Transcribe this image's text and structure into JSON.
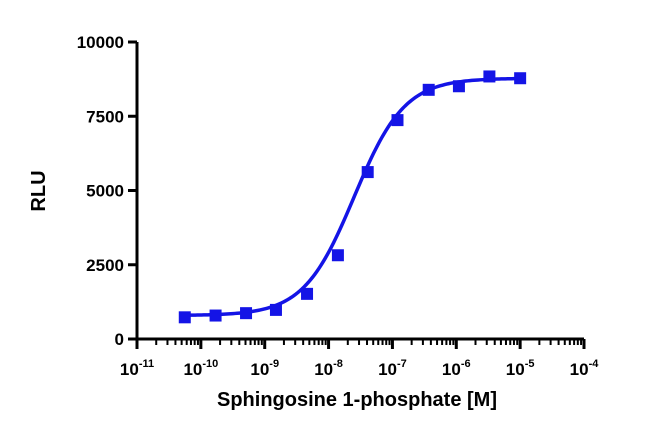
{
  "chart_data": {
    "type": "scatter",
    "title": "",
    "xlabel": "Sphingosine 1-phosphate [M]",
    "ylabel": "RLU",
    "xscale": "log",
    "xlim": [
      1e-11,
      0.0001
    ],
    "ylim": [
      0,
      10000
    ],
    "x_ticks": [
      {
        "base": "10",
        "exp": "-11",
        "value": 1e-11
      },
      {
        "base": "10",
        "exp": "-10",
        "value": 1e-10
      },
      {
        "base": "10",
        "exp": "-9",
        "value": 1e-09
      },
      {
        "base": "10",
        "exp": "-8",
        "value": 1e-08
      },
      {
        "base": "10",
        "exp": "-7",
        "value": 1e-07
      },
      {
        "base": "10",
        "exp": "-6",
        "value": 1e-06
      },
      {
        "base": "10",
        "exp": "-5",
        "value": 1e-05
      },
      {
        "base": "10",
        "exp": "-4",
        "value": 0.0001
      }
    ],
    "y_ticks": [
      {
        "label": "0",
        "value": 0
      },
      {
        "label": "2500",
        "value": 2500
      },
      {
        "label": "5000",
        "value": 5000
      },
      {
        "label": "7500",
        "value": 7500
      },
      {
        "label": "10000",
        "value": 10000
      }
    ],
    "grid": false,
    "series": [
      {
        "color": "#1414e6",
        "marker": "square",
        "x": [
          5.6e-11,
          1.7e-10,
          5.1e-10,
          1.5e-09,
          4.6e-09,
          1.4e-08,
          4.1e-08,
          1.2e-07,
          3.7e-07,
          1.1e-06,
          3.3e-06,
          1e-05
        ],
        "y": [
          730,
          790,
          870,
          980,
          1520,
          2820,
          5620,
          7370,
          8390,
          8510,
          8840,
          8780
        ]
      }
    ],
    "fit": {
      "type": "sigmoidal dose-response",
      "bottom": 790,
      "top": 8780,
      "logEC50": -7.6,
      "hill": 1.1,
      "color": "#1414e6"
    }
  }
}
